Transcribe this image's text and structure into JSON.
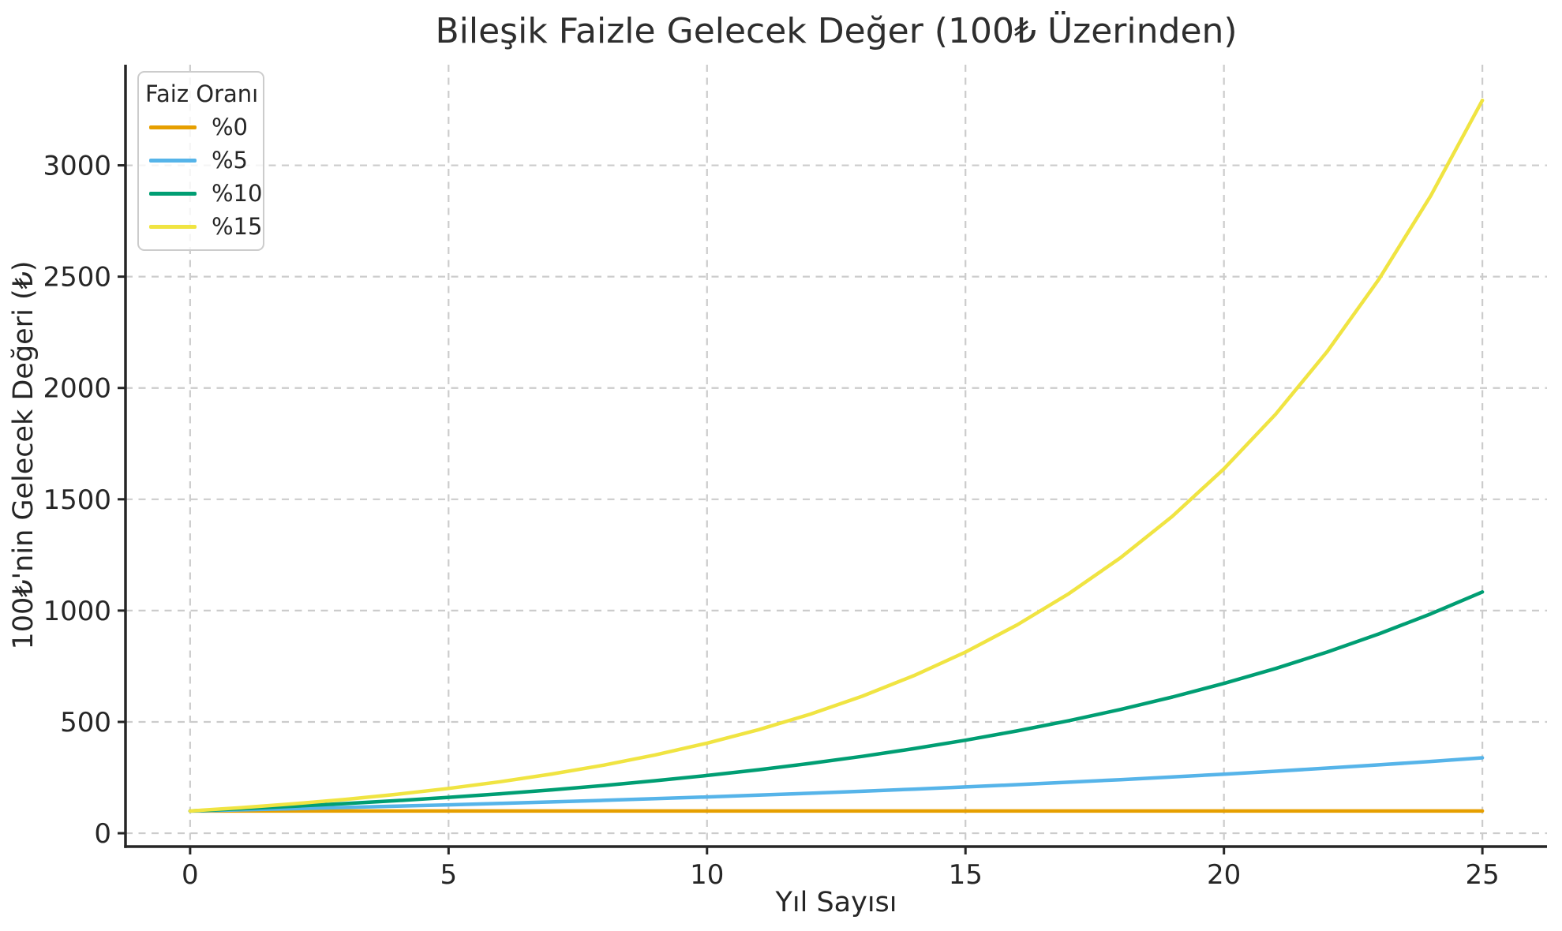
{
  "chart_data": {
    "type": "line",
    "title": "Bileşik Faizle Gelecek Değer (100₺ Üzerinden)",
    "xlabel": "Yıl Sayısı",
    "ylabel": "100₺'nin Gelecek Değeri (₺)",
    "legend": {
      "title": "Faiz Oranı",
      "position": "upper-left"
    },
    "x": [
      0,
      1,
      2,
      3,
      4,
      5,
      6,
      7,
      8,
      9,
      10,
      11,
      12,
      13,
      14,
      15,
      16,
      17,
      18,
      19,
      20,
      21,
      22,
      23,
      24,
      25
    ],
    "series": [
      {
        "name": "%0",
        "color": "#E69F00",
        "values": [
          100,
          100,
          100,
          100,
          100,
          100,
          100,
          100,
          100,
          100,
          100,
          100,
          100,
          100,
          100,
          100,
          100,
          100,
          100,
          100,
          100,
          100,
          100,
          100,
          100,
          100
        ]
      },
      {
        "name": "%5",
        "color": "#56B4E9",
        "values": [
          100,
          105,
          110.25,
          115.76,
          121.55,
          127.63,
          134.01,
          140.71,
          147.75,
          155.13,
          162.89,
          171.03,
          179.59,
          188.56,
          197.99,
          207.89,
          218.29,
          229.2,
          240.66,
          252.7,
          265.33,
          278.6,
          292.53,
          307.15,
          322.51,
          338.64
        ]
      },
      {
        "name": "%10",
        "color": "#009E73",
        "values": [
          100,
          110,
          121,
          133.1,
          146.41,
          161.05,
          177.16,
          194.87,
          214.36,
          235.79,
          259.37,
          285.31,
          313.84,
          345.23,
          379.75,
          417.72,
          459.5,
          505.45,
          555.99,
          611.59,
          672.75,
          740.02,
          814.03,
          895.43,
          984.97,
          1083.47
        ]
      },
      {
        "name": "%15",
        "color": "#F0E442",
        "values": [
          100,
          115,
          132.25,
          152.09,
          174.9,
          201.14,
          231.31,
          266,
          305.9,
          351.79,
          404.56,
          465.24,
          535.03,
          615.28,
          707.57,
          813.71,
          935.76,
          1076.13,
          1237.55,
          1423.18,
          1636.65,
          1882.15,
          2164.47,
          2489.15,
          2862.52,
          3291.9
        ]
      }
    ],
    "x_ticks": [
      0,
      5,
      10,
      15,
      20,
      25
    ],
    "y_ticks": [
      0,
      500,
      1000,
      1500,
      2000,
      2500,
      3000
    ],
    "xlim": [
      -1.25,
      26.25
    ],
    "ylim": [
      -60,
      3452
    ],
    "grid": {
      "visible": true,
      "style": "dashed",
      "color": "#cccccc"
    },
    "axis_color": "#262626",
    "text_color": "#262626",
    "background_color": "#ffffff"
  }
}
